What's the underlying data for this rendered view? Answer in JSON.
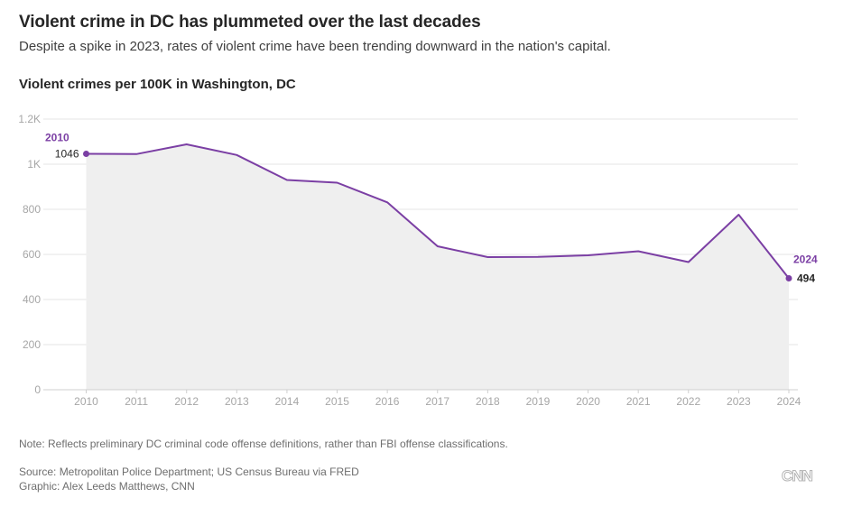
{
  "header": {
    "title": "Violent crime in DC has plummeted over the last decades",
    "subtitle": "Despite a spike in 2023, rates of violent crime have been trending downward in the nation's capital."
  },
  "footer": {
    "note": "Note: Reflects preliminary DC criminal code offense definitions, rather than FBI offense classifications.",
    "source": "Source: Metropolitan Police Department; US Census Bureau via FRED",
    "credit": "Graphic: Alex Leeds Matthews, CNN",
    "logo": "CNN"
  },
  "colors": {
    "line": "#7b3fa4",
    "area": "#efefef",
    "grid": "#e6e6e6",
    "tick": "#a6a6a6"
  },
  "chart_data": {
    "type": "area",
    "title": "Violent crimes per 100K in Washington, DC",
    "xlabel": "",
    "ylabel": "",
    "ylim": [
      0,
      1200
    ],
    "yticks": [
      0,
      200,
      400,
      600,
      800,
      1000,
      1200
    ],
    "ytick_labels": [
      "0",
      "200",
      "400",
      "600",
      "800",
      "1K",
      "1.2K"
    ],
    "grid": true,
    "x": [
      2010,
      2011,
      2012,
      2013,
      2014,
      2015,
      2016,
      2017,
      2018,
      2019,
      2020,
      2021,
      2022,
      2023,
      2024
    ],
    "x_labels": [
      "2010",
      "2011",
      "2012",
      "2013",
      "2014",
      "2015",
      "2016",
      "2017",
      "2018",
      "2019",
      "2020",
      "2021",
      "2022",
      "2023",
      "2024"
    ],
    "series": [
      {
        "name": "Violent crimes per 100K",
        "values": [
          1046,
          1045,
          1088,
          1041,
          930,
          918,
          831,
          636,
          588,
          589,
          596,
          614,
          566,
          776,
          494
        ]
      }
    ],
    "annotations": [
      {
        "year_label": "2010",
        "value_label": "1046"
      },
      {
        "year_label": "2024",
        "value_label": "494"
      }
    ]
  }
}
